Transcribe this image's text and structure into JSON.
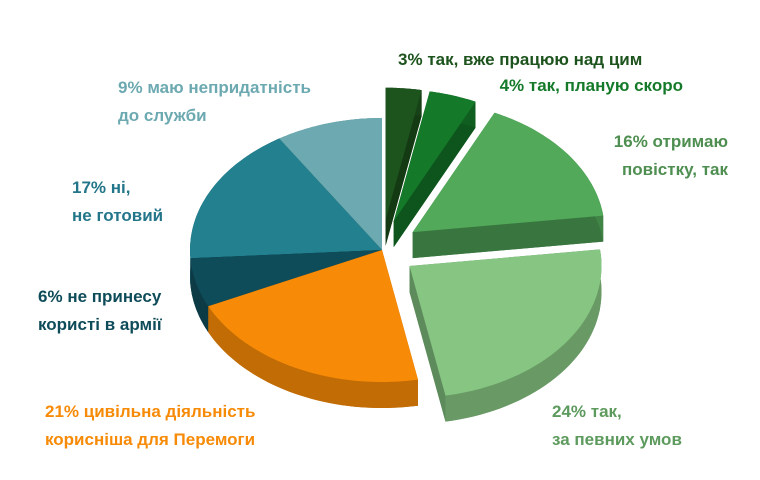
{
  "chart_data": {
    "type": "pie3d",
    "categories": [
      "так, вже працюю над цим",
      "так, планую скоро",
      "отримаю\nповістку, так",
      "так,\nза певних умов",
      "цивільна діяльність\nкорисніша для Перемоги",
      "не принесу\nкористі в армії",
      "ні,\nне готовий",
      "маю непридатність\nдо служби"
    ],
    "values": [
      3,
      4,
      16,
      24,
      21,
      6,
      17,
      9
    ],
    "value_labels": [
      "3%",
      "4%",
      "16%",
      "24%",
      "21%",
      "6%",
      "17%",
      "9%"
    ],
    "colors": [
      "#1d531d",
      "#147a29",
      "#52a95a",
      "#86c682",
      "#f78a06",
      "#0f4c5a",
      "#23808f",
      "#6ca9b1"
    ],
    "label_colors": [
      "#1d531d",
      "#147a29",
      "#4e8e50",
      "#5d9a5d",
      "#f78a06",
      "#0f4c5a",
      "#23768a",
      "#6ca9b1"
    ]
  }
}
